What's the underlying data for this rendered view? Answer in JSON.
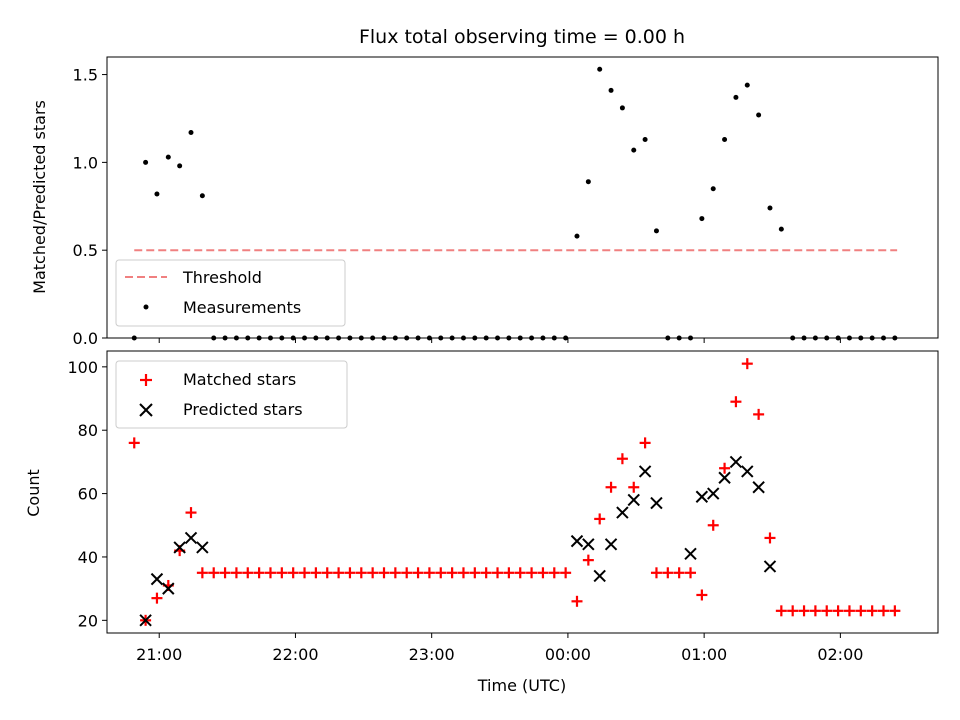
{
  "chart_data": [
    {
      "type": "scatter",
      "title": "Flux total observing time = 0.00 h",
      "ylabel": "Matched/Predicted stars",
      "ylim": [
        0,
        1.6
      ],
      "yticks": [
        0.0,
        0.5,
        1.0,
        1.5
      ],
      "ytick_labels": [
        "0.0",
        "0.5",
        "1.0",
        "1.5"
      ],
      "xlim": [
        "20:37",
        "02:43"
      ],
      "x_ticks": [
        "21:00",
        "22:00",
        "23:00",
        "00:00",
        "01:00",
        "02:00"
      ],
      "threshold": {
        "name": "Threshold",
        "value": 0.5,
        "x_range": [
          "20:49",
          "02:25"
        ],
        "color": "#f08080"
      },
      "legend": [
        "Threshold",
        "Measurements"
      ],
      "legend_position": "lower-left",
      "series": [
        {
          "name": "Measurements",
          "color": "#000000",
          "x": [
            "20:49",
            "20:54",
            "20:59",
            "21:04",
            "21:09",
            "21:14",
            "21:19",
            "21:24",
            "21:29",
            "21:34",
            "21:39",
            "21:44",
            "21:49",
            "21:54",
            "21:59",
            "22:04",
            "22:09",
            "22:14",
            "22:19",
            "22:24",
            "22:29",
            "22:34",
            "22:39",
            "22:44",
            "22:49",
            "22:54",
            "22:59",
            "23:04",
            "23:09",
            "23:14",
            "23:19",
            "23:24",
            "23:29",
            "23:34",
            "23:39",
            "23:44",
            "23:49",
            "23:54",
            "23:59",
            "00:04",
            "00:09",
            "00:14",
            "00:19",
            "00:24",
            "00:29",
            "00:34",
            "00:39",
            "00:44",
            "00:49",
            "00:54",
            "00:59",
            "01:04",
            "01:09",
            "01:14",
            "01:19",
            "01:24",
            "01:29",
            "01:34",
            "01:39",
            "01:44",
            "01:49",
            "01:54",
            "01:59",
            "02:04",
            "02:09",
            "02:14",
            "02:19",
            "02:24"
          ],
          "values": [
            0,
            1.0,
            0.82,
            1.03,
            0.98,
            1.17,
            0.81,
            0,
            0,
            0,
            0,
            0,
            0,
            0,
            0,
            0,
            0,
            0,
            0,
            0,
            0,
            0,
            0,
            0,
            0,
            0,
            0,
            0,
            0,
            0,
            0,
            0,
            0,
            0,
            0,
            0,
            0,
            0,
            0,
            0.58,
            0.89,
            1.53,
            1.41,
            1.31,
            1.07,
            1.13,
            0.61,
            0,
            0,
            0,
            0.68,
            0.85,
            1.13,
            1.37,
            1.44,
            1.27,
            0.74,
            0.62,
            0,
            0,
            0,
            0,
            0,
            0,
            0,
            0,
            0,
            0
          ]
        }
      ]
    },
    {
      "type": "scatter",
      "xlabel": "Time (UTC)",
      "ylabel": "Count",
      "ylim": [
        16,
        105
      ],
      "yticks": [
        20,
        40,
        60,
        80,
        100
      ],
      "ytick_labels": [
        "20",
        "40",
        "60",
        "80",
        "100"
      ],
      "xlim": [
        "20:37",
        "02:43"
      ],
      "x_ticks": [
        "21:00",
        "22:00",
        "23:00",
        "00:00",
        "01:00",
        "02:00"
      ],
      "legend": [
        "Matched stars",
        "Predicted stars"
      ],
      "legend_position": "upper-left",
      "series": [
        {
          "name": "Matched stars",
          "marker": "plus",
          "color": "#ff0000",
          "x": [
            "20:49",
            "20:54",
            "20:59",
            "21:04",
            "21:09",
            "21:14",
            "21:19",
            "21:24",
            "21:29",
            "21:34",
            "21:39",
            "21:44",
            "21:49",
            "21:54",
            "21:59",
            "22:04",
            "22:09",
            "22:14",
            "22:19",
            "22:24",
            "22:29",
            "22:34",
            "22:39",
            "22:44",
            "22:49",
            "22:54",
            "22:59",
            "23:04",
            "23:09",
            "23:14",
            "23:19",
            "23:24",
            "23:29",
            "23:34",
            "23:39",
            "23:44",
            "23:49",
            "23:54",
            "23:59",
            "00:04",
            "00:09",
            "00:14",
            "00:19",
            "00:24",
            "00:29",
            "00:34",
            "00:39",
            "00:44",
            "00:49",
            "00:54",
            "00:59",
            "01:04",
            "01:09",
            "01:14",
            "01:19",
            "01:24",
            "01:29",
            "01:34",
            "01:39",
            "01:44",
            "01:49",
            "01:54",
            "01:59",
            "02:04",
            "02:09",
            "02:14",
            "02:19",
            "02:24"
          ],
          "values": [
            76,
            20,
            27,
            31,
            42,
            54,
            35,
            35,
            35,
            35,
            35,
            35,
            35,
            35,
            35,
            35,
            35,
            35,
            35,
            35,
            35,
            35,
            35,
            35,
            35,
            35,
            35,
            35,
            35,
            35,
            35,
            35,
            35,
            35,
            35,
            35,
            35,
            35,
            35,
            26,
            39,
            52,
            62,
            71,
            62,
            76,
            35,
            35,
            35,
            35,
            28,
            50,
            68,
            89,
            101,
            85,
            46,
            23,
            23,
            23,
            23,
            23,
            23,
            23,
            23,
            23,
            23,
            23
          ]
        },
        {
          "name": "Predicted stars",
          "marker": "x",
          "color": "#000000",
          "x": [
            "20:54",
            "20:59",
            "21:04",
            "21:09",
            "21:14",
            "21:19",
            "00:04",
            "00:09",
            "00:14",
            "00:19",
            "00:24",
            "00:29",
            "00:34",
            "00:39",
            "00:54",
            "00:59",
            "01:04",
            "01:09",
            "01:14",
            "01:19",
            "01:24",
            "01:29"
          ],
          "values": [
            20,
            33,
            30,
            43,
            46,
            43,
            45,
            44,
            34,
            44,
            54,
            58,
            67,
            57,
            41,
            59,
            60,
            65,
            70,
            67,
            62,
            37
          ]
        }
      ]
    }
  ]
}
